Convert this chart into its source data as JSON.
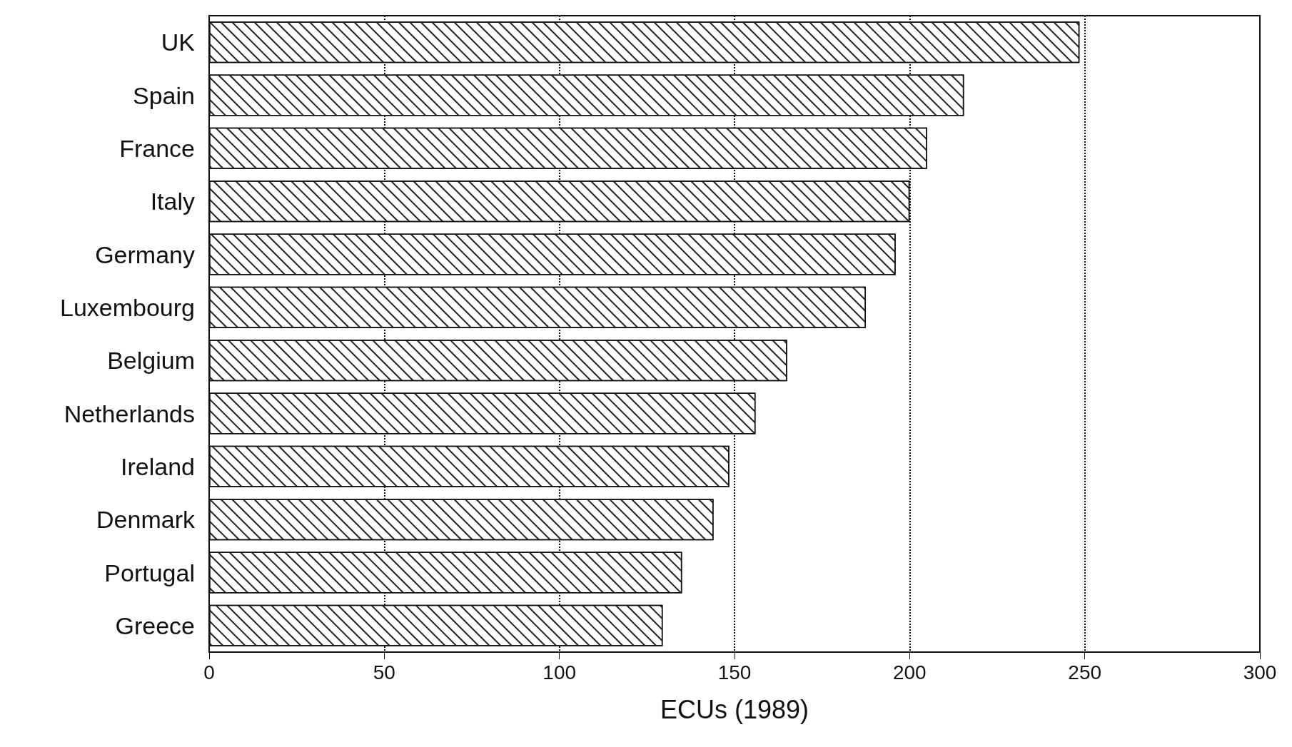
{
  "chart_data": {
    "type": "bar",
    "orientation": "horizontal",
    "xlabel": "ECUs (1989)",
    "categories": [
      "UK",
      "Spain",
      "France",
      "Italy",
      "Germany",
      "Luxembourg",
      "Belgium",
      "Netherlands",
      "Ireland",
      "Denmark",
      "Portugal",
      "Greece"
    ],
    "values": [
      248.5,
      215.5,
      205,
      200,
      196,
      187.5,
      165,
      156,
      148.5,
      144,
      135,
      129.5
    ],
    "color": "#ffffff",
    "xlim": [
      0,
      300
    ],
    "xticks": [
      0,
      50,
      100,
      150,
      200,
      250,
      300
    ],
    "grid": "x"
  }
}
